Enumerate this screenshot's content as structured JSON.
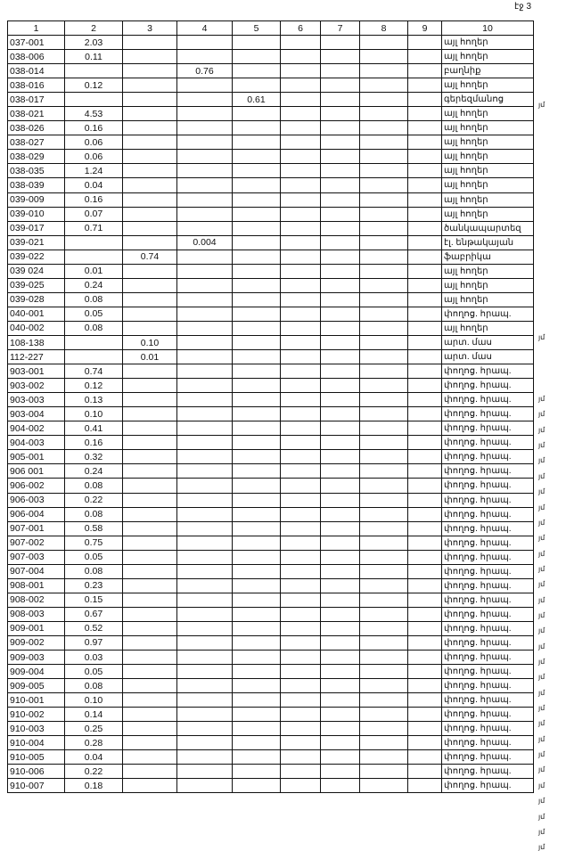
{
  "page_label": "էջ 3",
  "headers": [
    "1",
    "2",
    "3",
    "4",
    "5",
    "6",
    "7",
    "8",
    "9",
    "10"
  ],
  "rows": [
    {
      "cells": [
        "037-001",
        "2.03",
        "",
        "",
        "",
        "",
        "",
        "",
        "",
        "այլ հողեր"
      ],
      "mark": ""
    },
    {
      "cells": [
        "038-006",
        "0.11",
        "",
        "",
        "",
        "",
        "",
        "",
        "",
        "այլ հողեր"
      ],
      "mark": ""
    },
    {
      "cells": [
        "038-014",
        "",
        "",
        "0.76",
        "",
        "",
        "",
        "",
        "",
        "բաղնիք"
      ],
      "mark": ""
    },
    {
      "cells": [
        "038-016",
        "0.12",
        "",
        "",
        "",
        "",
        "",
        "",
        "",
        "այլ հողեր"
      ],
      "mark": ""
    },
    {
      "cells": [
        "038-017",
        "",
        "",
        "",
        "0.61",
        "",
        "",
        "",
        "",
        "գերեզմանոց"
      ],
      "mark": "յմ"
    },
    {
      "cells": [
        "038-021",
        "4.53",
        "",
        "",
        "",
        "",
        "",
        "",
        "",
        "այլ հողեր"
      ],
      "mark": ""
    },
    {
      "cells": [
        "038-026",
        "0.16",
        "",
        "",
        "",
        "",
        "",
        "",
        "",
        "այլ հողեր"
      ],
      "mark": ""
    },
    {
      "cells": [
        "038-027",
        "0.06",
        "",
        "",
        "",
        "",
        "",
        "",
        "",
        "այլ հողեր"
      ],
      "mark": ""
    },
    {
      "cells": [
        "038-029",
        "0.06",
        "",
        "",
        "",
        "",
        "",
        "",
        "",
        "այլ հողեր"
      ],
      "mark": ""
    },
    {
      "cells": [
        "038-035",
        "1.24",
        "",
        "",
        "",
        "",
        "",
        "",
        "",
        "այլ հողեր"
      ],
      "mark": ""
    },
    {
      "cells": [
        "038-039",
        "0.04",
        "",
        "",
        "",
        "",
        "",
        "",
        "",
        "այլ հողեր"
      ],
      "mark": ""
    },
    {
      "cells": [
        "039-009",
        "0.16",
        "",
        "",
        "",
        "",
        "",
        "",
        "",
        "այլ հողեր"
      ],
      "mark": ""
    },
    {
      "cells": [
        "039-010",
        "0.07",
        "",
        "",
        "",
        "",
        "",
        "",
        "",
        "այլ հողեր"
      ],
      "mark": ""
    },
    {
      "cells": [
        "039-017",
        "0.71",
        "",
        "",
        "",
        "",
        "",
        "",
        "",
        "ծանկապարտեզ"
      ],
      "mark": ""
    },
    {
      "cells": [
        "039-021",
        "",
        "",
        "0.004",
        "",
        "",
        "",
        "",
        "",
        "էլ. ենթակայան"
      ],
      "mark": ""
    },
    {
      "cells": [
        "039-022",
        "",
        "0.74",
        "",
        "",
        "",
        "",
        "",
        "",
        "ֆաբրիկա"
      ],
      "mark": ""
    },
    {
      "cells": [
        "039 024",
        "0.01",
        "",
        "",
        "",
        "",
        "",
        "",
        "",
        "այլ հողեր"
      ],
      "mark": ""
    },
    {
      "cells": [
        "039-025",
        "0.24",
        "",
        "",
        "",
        "",
        "",
        "",
        "",
        "այլ հողեր"
      ],
      "mark": ""
    },
    {
      "cells": [
        "039-028",
        "0.08",
        "",
        "",
        "",
        "",
        "",
        "",
        "",
        "այլ հողեր"
      ],
      "mark": ""
    },
    {
      "cells": [
        "040-001",
        "0.05",
        "",
        "",
        "",
        "",
        "",
        "",
        "",
        "փողոց. հրապ."
      ],
      "mark": "յմ"
    },
    {
      "cells": [
        "040-002",
        "0.08",
        "",
        "",
        "",
        "",
        "",
        "",
        "",
        "այլ հողեր"
      ],
      "mark": ""
    },
    {
      "cells": [
        "108-138",
        "",
        "0.10",
        "",
        "",
        "",
        "",
        "",
        "",
        "արտ. մաս"
      ],
      "mark": ""
    },
    {
      "cells": [
        "112-227",
        "",
        "0.01",
        "",
        "",
        "",
        "",
        "",
        "",
        "արտ. մաս"
      ],
      "mark": ""
    },
    {
      "cells": [
        "903-001",
        "0.74",
        "",
        "",
        "",
        "",
        "",
        "",
        "",
        "փողոց. հրապ."
      ],
      "mark": "յմ"
    },
    {
      "cells": [
        "903-002",
        "0.12",
        "",
        "",
        "",
        "",
        "",
        "",
        "",
        "փողոց. հրապ."
      ],
      "mark": "յմ"
    },
    {
      "cells": [
        "903-003",
        "0.13",
        "",
        "",
        "",
        "",
        "",
        "",
        "",
        "փողոց. հրապ."
      ],
      "mark": "յմ"
    },
    {
      "cells": [
        "903-004",
        "0.10",
        "",
        "",
        "",
        "",
        "",
        "",
        "",
        "փողոց. հրապ."
      ],
      "mark": "յմ"
    },
    {
      "cells": [
        "904-002",
        "0.41",
        "",
        "",
        "",
        "",
        "",
        "",
        "",
        "փողոց. հրապ."
      ],
      "mark": "յմ"
    },
    {
      "cells": [
        "904-003",
        "0.16",
        "",
        "",
        "",
        "",
        "",
        "",
        "",
        "փողոց. հրապ."
      ],
      "mark": "յմ"
    },
    {
      "cells": [
        "905-001",
        "0.32",
        "",
        "",
        "",
        "",
        "",
        "",
        "",
        "փողոց. հրապ."
      ],
      "mark": "յմ"
    },
    {
      "cells": [
        "906 001",
        "0.24",
        "",
        "",
        "",
        "",
        "",
        "",
        "",
        "փողոց. հրապ."
      ],
      "mark": "յմ"
    },
    {
      "cells": [
        "906-002",
        "0.08",
        "",
        "",
        "",
        "",
        "",
        "",
        "",
        "փողոց. հրապ."
      ],
      "mark": "յմ"
    },
    {
      "cells": [
        "906-003",
        "0.22",
        "",
        "",
        "",
        "",
        "",
        "",
        "",
        "փողոց. հրապ."
      ],
      "mark": "յմ"
    },
    {
      "cells": [
        "906-004",
        "0.08",
        "",
        "",
        "",
        "",
        "",
        "",
        "",
        "փողոց. հրապ."
      ],
      "mark": "յմ"
    },
    {
      "cells": [
        "907-001",
        "0.58",
        "",
        "",
        "",
        "",
        "",
        "",
        "",
        "փողոց. հրապ."
      ],
      "mark": "յմ"
    },
    {
      "cells": [
        "907-002",
        "0.75",
        "",
        "",
        "",
        "",
        "",
        "",
        "",
        "փողոց. հրապ."
      ],
      "mark": "յմ"
    },
    {
      "cells": [
        "907-003",
        "0.05",
        "",
        "",
        "",
        "",
        "",
        "",
        "",
        "փողոց. հրապ."
      ],
      "mark": "յմ"
    },
    {
      "cells": [
        "907-004",
        "0.08",
        "",
        "",
        "",
        "",
        "",
        "",
        "",
        "փողոց. հրապ."
      ],
      "mark": "յմ"
    },
    {
      "cells": [
        "908-001",
        "0.23",
        "",
        "",
        "",
        "",
        "",
        "",
        "",
        "փողոց. հրապ."
      ],
      "mark": "յմ"
    },
    {
      "cells": [
        "908-002",
        "0.15",
        "",
        "",
        "",
        "",
        "",
        "",
        "",
        "փողոց. հրապ."
      ],
      "mark": "յմ"
    },
    {
      "cells": [
        "908-003",
        "0.67",
        "",
        "",
        "",
        "",
        "",
        "",
        "",
        "փողոց. հրապ."
      ],
      "mark": "յմ"
    },
    {
      "cells": [
        "909-001",
        "0.52",
        "",
        "",
        "",
        "",
        "",
        "",
        "",
        "փողոց. հրապ."
      ],
      "mark": "յմ"
    },
    {
      "cells": [
        "909-002",
        "0.97",
        "",
        "",
        "",
        "",
        "",
        "",
        "",
        "փողոց. հրապ."
      ],
      "mark": "յմ"
    },
    {
      "cells": [
        "909-003",
        "0.03",
        "",
        "",
        "",
        "",
        "",
        "",
        "",
        "փողոց. հրապ."
      ],
      "mark": "յմ"
    },
    {
      "cells": [
        "909-004",
        "0.05",
        "",
        "",
        "",
        "",
        "",
        "",
        "",
        "փողոց. հրապ."
      ],
      "mark": "յմ"
    },
    {
      "cells": [
        "909-005",
        "0.08",
        "",
        "",
        "",
        "",
        "",
        "",
        "",
        "փողոց. հրապ."
      ],
      "mark": "յմ"
    },
    {
      "cells": [
        "910-001",
        "0.10",
        "",
        "",
        "",
        "",
        "",
        "",
        "",
        "փողոց. հրապ."
      ],
      "mark": "յմ"
    },
    {
      "cells": [
        "910-002",
        "0.14",
        "",
        "",
        "",
        "",
        "",
        "",
        "",
        "փողոց. հրապ."
      ],
      "mark": "յմ"
    },
    {
      "cells": [
        "910-003",
        "0.25",
        "",
        "",
        "",
        "",
        "",
        "",
        "",
        "փողոց. հրապ."
      ],
      "mark": "յմ"
    },
    {
      "cells": [
        "910-004",
        "0.28",
        "",
        "",
        "",
        "",
        "",
        "",
        "",
        "փողոց. հրապ."
      ],
      "mark": "յմ"
    },
    {
      "cells": [
        "910-005",
        "0.04",
        "",
        "",
        "",
        "",
        "",
        "",
        "",
        "փողոց. հրապ."
      ],
      "mark": "յմ"
    },
    {
      "cells": [
        "910-006",
        "0.22",
        "",
        "",
        "",
        "",
        "",
        "",
        "",
        "փողոց. հրապ."
      ],
      "mark": "յմ"
    },
    {
      "cells": [
        "910-007",
        "0.18",
        "",
        "",
        "",
        "",
        "",
        "",
        "",
        "փողոց. հրապ."
      ],
      "mark": "յմ"
    }
  ]
}
